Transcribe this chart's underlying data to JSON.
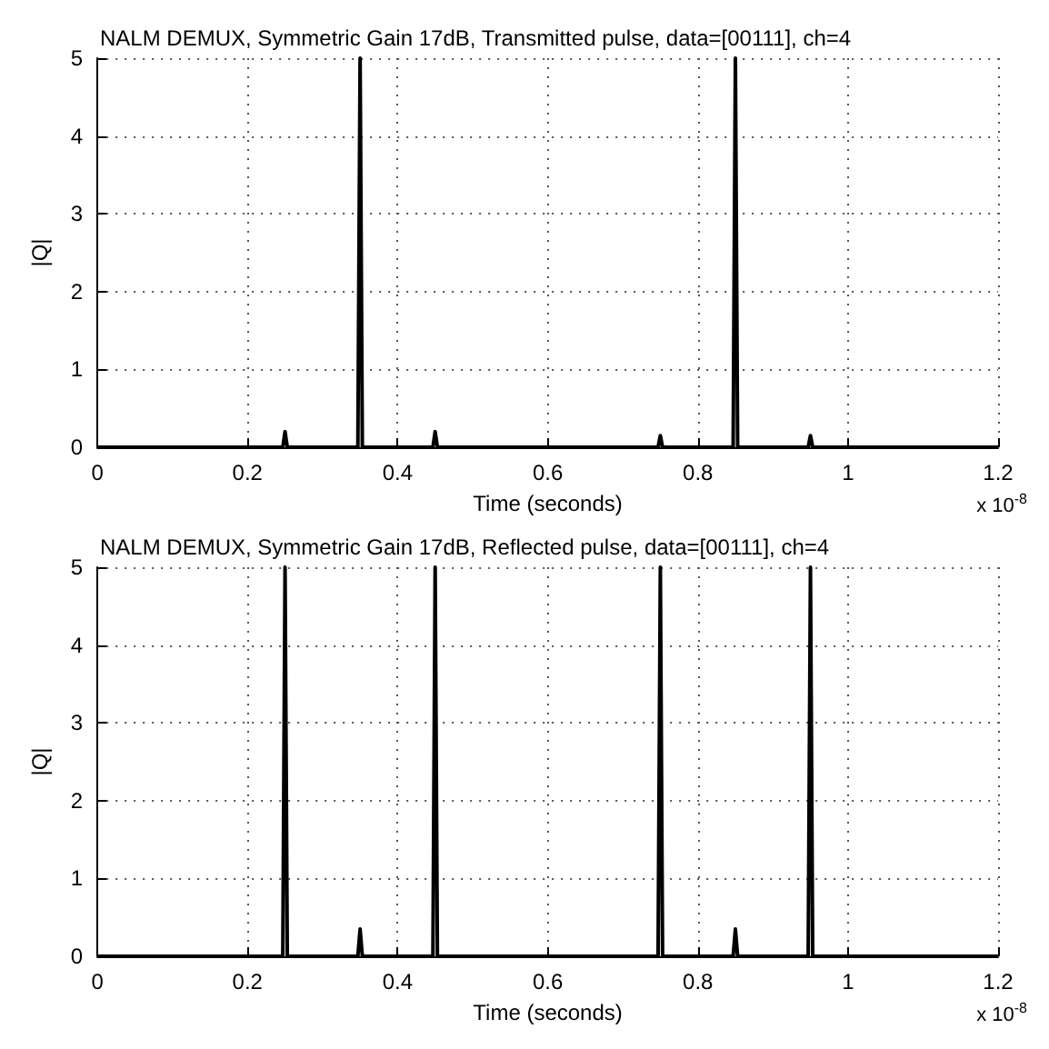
{
  "chart_data": [
    {
      "type": "line",
      "title": "NALM DEMUX, Symmetric Gain 17dB, Transmitted pulse, data=[00111], ch=4",
      "xlabel": "Time (seconds)",
      "ylabel": "|Q|",
      "annotations": [
        "x 10$^{-8}$"
      ],
      "x": [
        0,
        0.247,
        0.25,
        0.253,
        0.347,
        0.35,
        0.353,
        0.447,
        0.45,
        0.453,
        0.747,
        0.75,
        0.753,
        0.847,
        0.85,
        0.853,
        0.947,
        0.95,
        0.953,
        1.2
      ],
      "series": [
        {
          "color": "#000000",
          "values": [
            0,
            0,
            0.2,
            0,
            0,
            5,
            0,
            0,
            0.2,
            0,
            0,
            0.15,
            0,
            0,
            5,
            0,
            0,
            0.15,
            0,
            0
          ]
        }
      ],
      "xlim": [
        0,
        1.2
      ],
      "xticks": [
        0,
        0.2,
        0.4,
        0.6,
        0.8,
        1,
        1.2
      ],
      "ylim": [
        0,
        5
      ],
      "yticks": [
        0,
        1,
        2,
        3,
        4,
        5
      ],
      "grid": true,
      "marker": "none",
      "line_style": "solid"
    },
    {
      "type": "line",
      "title": "NALM DEMUX, Symmetric Gain 17dB, Reflected pulse, data=[00111], ch=4",
      "xlabel": "Time (seconds)",
      "ylabel": "|Q|",
      "annotations": [
        "x 10$^{-8}$"
      ],
      "x": [
        0,
        0.247,
        0.25,
        0.253,
        0.347,
        0.35,
        0.353,
        0.447,
        0.45,
        0.453,
        0.747,
        0.75,
        0.753,
        0.847,
        0.85,
        0.853,
        0.947,
        0.95,
        0.953,
        1.2
      ],
      "series": [
        {
          "color": "#000000",
          "values": [
            0,
            0,
            5,
            0,
            0,
            0.35,
            0,
            0,
            5,
            0,
            0,
            5,
            0,
            0,
            0.35,
            0,
            0,
            5,
            0,
            0
          ]
        }
      ],
      "xlim": [
        0,
        1.2
      ],
      "xticks": [
        0,
        0.2,
        0.4,
        0.6,
        0.8,
        1,
        1.2
      ],
      "ylim": [
        0,
        5
      ],
      "yticks": [
        0,
        1,
        2,
        3,
        4,
        5
      ],
      "grid": true,
      "marker": "none",
      "line_style": "solid"
    }
  ]
}
